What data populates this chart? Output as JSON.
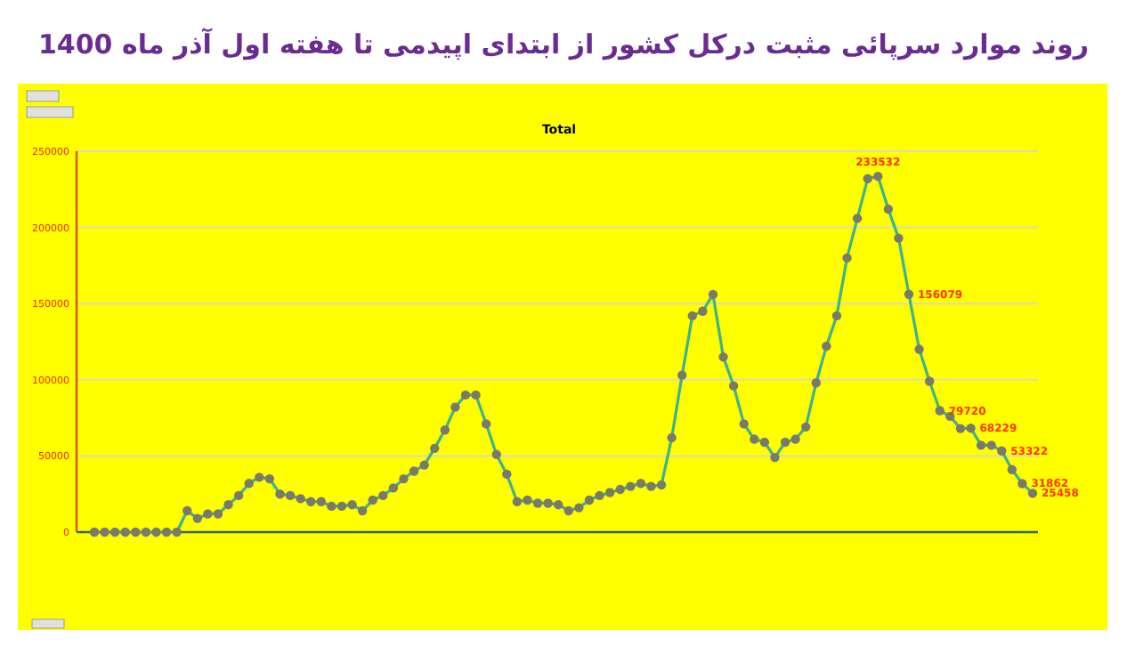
{
  "chart_data": {
    "type": "line",
    "title": "روند موارد سرپائی مثبت درکل کشور از ابتدای اپیدمی تا هفته اول آذر ماه 1400",
    "subtitle": "Total",
    "categories": [
      null,
      null,
      null,
      null,
      null,
      null,
      null,
      null,
      null,
      null,
      null,
      null,
      null,
      null,
      null,
      null,
      null,
      null,
      null,
      null,
      null,
      null,
      null,
      null,
      null,
      null,
      null,
      null,
      null,
      null,
      null,
      null,
      null,
      null,
      null,
      null,
      null,
      null,
      null,
      null,
      null,
      null,
      null,
      null,
      null,
      null,
      null,
      null,
      null,
      null,
      null,
      null,
      null,
      null,
      null,
      null,
      null,
      null,
      null,
      null,
      null,
      null,
      null,
      null,
      null,
      null,
      null,
      null,
      null,
      null,
      null,
      null,
      null,
      null,
      null,
      null,
      null,
      null,
      null,
      null,
      null,
      null,
      null,
      null,
      null,
      null,
      null,
      null,
      null,
      null,
      null,
      null
    ],
    "series": [
      {
        "color": "#3cb38a",
        "values": [
          0,
          0,
          0,
          0,
          0,
          0,
          0,
          0,
          0,
          14000,
          9000,
          12000,
          12000,
          18000,
          24000,
          32000,
          36000,
          35000,
          25000,
          24000,
          22000,
          20000,
          20000,
          17000,
          17000,
          18000,
          14000,
          21000,
          24000,
          29000,
          35000,
          40000,
          44000,
          55000,
          67000,
          82000,
          90000,
          90000,
          71000,
          51000,
          38000,
          20000,
          21000,
          19000,
          19000,
          18000,
          14000,
          16000,
          21000,
          24000,
          26000,
          28000,
          30000,
          32000,
          30000,
          31000,
          62000,
          103000,
          142000,
          145000,
          156000,
          115000,
          96000,
          71000,
          61000,
          59000,
          49000,
          59000,
          61000,
          69000,
          98000,
          122000,
          142000,
          180000,
          206000,
          232000,
          233532,
          212000,
          193000,
          156079,
          120000,
          99000,
          79720,
          76000,
          68000,
          68229,
          57000,
          57000,
          53322,
          41000,
          31862,
          25458
        ],
        "value_labels": [
          null,
          null,
          null,
          null,
          null,
          null,
          null,
          null,
          null,
          null,
          null,
          null,
          null,
          null,
          null,
          null,
          null,
          null,
          null,
          null,
          null,
          null,
          null,
          null,
          null,
          null,
          null,
          null,
          null,
          null,
          null,
          null,
          null,
          null,
          null,
          null,
          null,
          null,
          null,
          null,
          null,
          null,
          null,
          null,
          null,
          null,
          null,
          null,
          null,
          null,
          null,
          null,
          null,
          null,
          null,
          null,
          null,
          null,
          null,
          null,
          null,
          null,
          null,
          null,
          null,
          null,
          null,
          null,
          null,
          null,
          null,
          null,
          null,
          null,
          null,
          null,
          "233532",
          null,
          null,
          "156079",
          null,
          null,
          "79720",
          null,
          null,
          "68229",
          null,
          null,
          "53322",
          null,
          "31862",
          "25458"
        ]
      }
    ],
    "ylim": [
      0,
      250000
    ],
    "yticks": [
      0,
      50000,
      100000,
      150000,
      200000,
      250000
    ],
    "grid": "y",
    "marker": "circle",
    "line_style": "solid"
  }
}
